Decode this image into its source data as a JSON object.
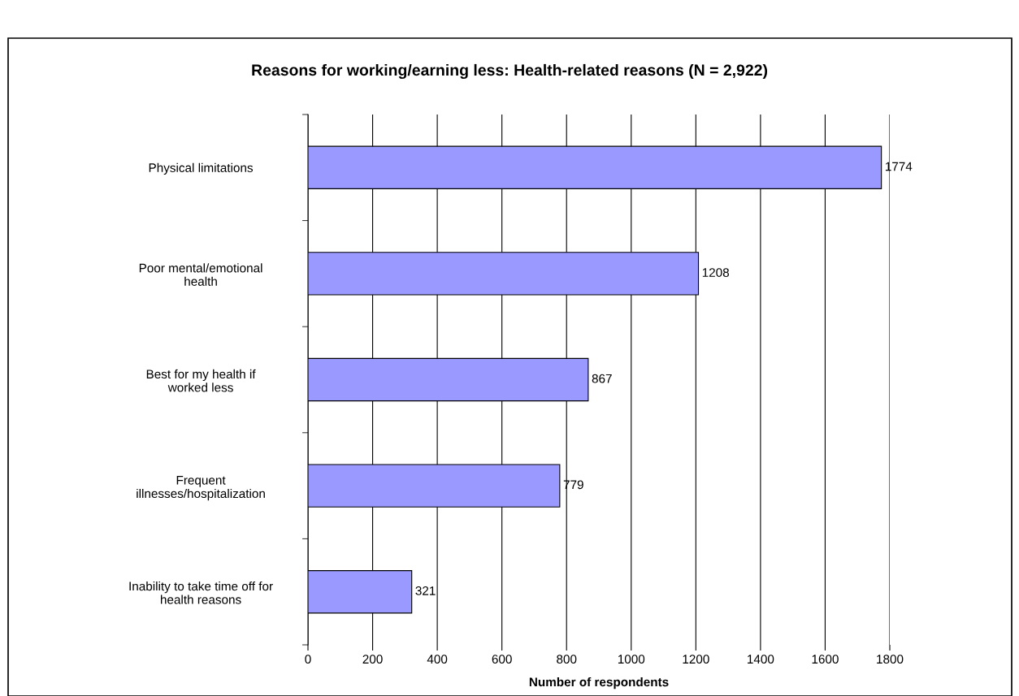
{
  "chart_data": {
    "type": "bar",
    "orientation": "horizontal",
    "title": "Reasons for working/earning less: Health-related reasons (N = 2,922)",
    "xlabel": "Number of respondents",
    "categories": [
      "Physical limitations",
      "Poor mental/emotional\nhealth",
      "Best for my health if\nworked less",
      "Frequent\nillnesses/hospitalization",
      "Inability to take time off for\nhealth reasons"
    ],
    "values": [
      1774,
      1208,
      867,
      779,
      321
    ],
    "color": "#9999ff",
    "xlim": [
      0,
      1800
    ],
    "xticks": [
      0,
      200,
      400,
      600,
      800,
      1000,
      1200,
      1400,
      1600,
      1800
    ],
    "grid": "x",
    "data_labels": true,
    "legend": false
  }
}
